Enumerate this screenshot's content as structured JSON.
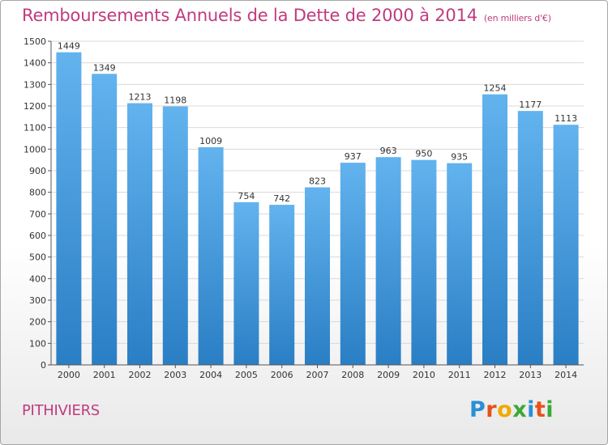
{
  "title": "Remboursements Annuels de la Dette de 2000 à 2014",
  "unit_note": "(en milliers d'€)",
  "commune": "PITHIVIERS",
  "logo": {
    "letters": [
      "P",
      "r",
      "o",
      "x",
      "i",
      "t",
      "i"
    ],
    "colors": [
      "#2a8fd6",
      "#e8501b",
      "#f2a900",
      "#3aa935",
      "#2a8fd6",
      "#e8501b",
      "#3aa935"
    ]
  },
  "colors": {
    "bar_top": "#62b3ee",
    "bar_bottom": "#2a7ec4",
    "grid": "#d9d9d9",
    "axis": "#555555",
    "title": "#c03b7e"
  },
  "chart_data": {
    "type": "bar",
    "categories": [
      "2000",
      "2001",
      "2002",
      "2003",
      "2004",
      "2005",
      "2006",
      "2007",
      "2008",
      "2009",
      "2010",
      "2011",
      "2012",
      "2013",
      "2014"
    ],
    "values": [
      1449,
      1349,
      1213,
      1198,
      1009,
      754,
      742,
      823,
      937,
      963,
      950,
      935,
      1254,
      1177,
      1113
    ],
    "ylim": [
      0,
      1500
    ],
    "yticks": [
      0,
      100,
      200,
      300,
      400,
      500,
      600,
      700,
      800,
      900,
      1000,
      1100,
      1200,
      1300,
      1400,
      1500
    ],
    "grid": true,
    "title": "Remboursements Annuels de la Dette de 2000 à 2014",
    "xlabel": "",
    "ylabel": ""
  }
}
